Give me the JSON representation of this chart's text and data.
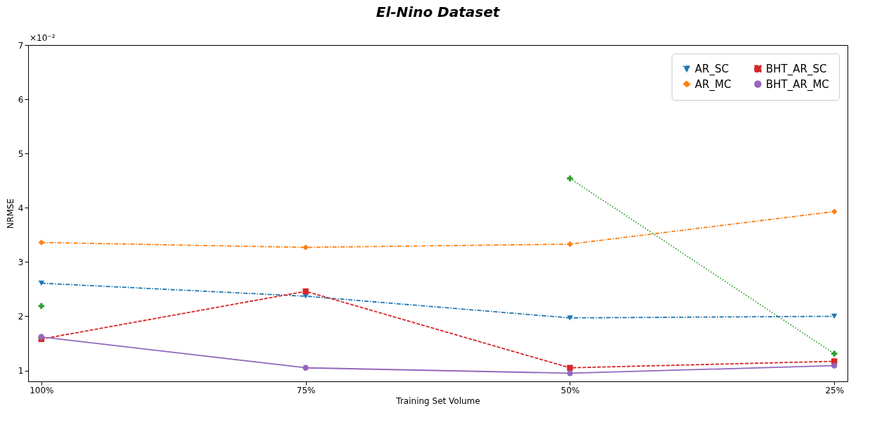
{
  "chart_data": {
    "type": "line",
    "title": "El-Nino Dataset",
    "xlabel": "Training Set Volume",
    "ylabel": "NRMSE",
    "categories": [
      "100%",
      "75%",
      "50%",
      "25%"
    ],
    "series": [
      {
        "name": "AR_SC",
        "color": "#1f77b4",
        "marker": "triangle-down",
        "line_style": "dashdot",
        "values": [
          2.61,
          2.37,
          1.97,
          2.0
        ]
      },
      {
        "name": "AR_MC",
        "color": "#ff7f0e",
        "marker": "diamond",
        "line_style": "dashdot",
        "values": [
          3.36,
          3.27,
          3.33,
          3.93
        ]
      },
      {
        "color": "#2ca02c",
        "marker": "cross",
        "line_style": "dotted",
        "values": [
          2.19,
          null,
          4.54,
          1.31
        ]
      },
      {
        "name": "BHT_AR_SC",
        "color": "#d62728",
        "marker": "square",
        "line_style": "dashed",
        "values": [
          1.58,
          2.46,
          1.05,
          1.17
        ]
      },
      {
        "name": "BHT_AR_MC",
        "color": "#9467bd",
        "marker": "circle",
        "line_style": "solid",
        "values": [
          1.62,
          1.05,
          0.95,
          1.09
        ]
      }
    ],
    "ylim": [
      0.8,
      7
    ],
    "yticks": [
      1,
      2,
      3,
      4,
      5,
      6,
      7
    ],
    "annotations": [
      "×10⁻²"
    ],
    "legend": "top right",
    "grid": false
  }
}
